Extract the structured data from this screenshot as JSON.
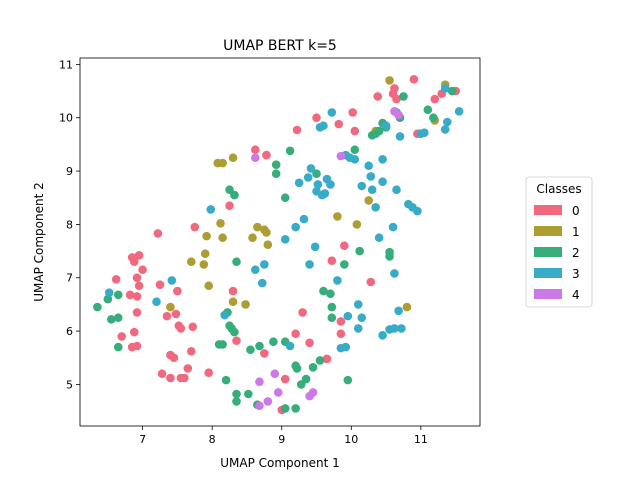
{
  "chart_data": {
    "type": "scatter",
    "title": "UMAP BERT k=5",
    "xlabel": "UMAP Component 1",
    "ylabel": "UMAP Component 2",
    "xlim": [
      6.1,
      11.85
    ],
    "ylim": [
      4.22,
      11.12
    ],
    "xticks": [
      7,
      8,
      9,
      10,
      11
    ],
    "yticks": [
      5,
      6,
      7,
      8,
      9,
      10,
      11
    ],
    "grid": false,
    "legend": {
      "title": "Classes",
      "placement": "center-right"
    },
    "series": [
      {
        "name": "0",
        "color": "#f0697e",
        "points": [
          [
            6.62,
            6.97
          ],
          [
            6.85,
            7.38
          ],
          [
            6.95,
            7.42
          ],
          [
            6.88,
            7.3
          ],
          [
            6.92,
            7.0
          ],
          [
            6.95,
            6.85
          ],
          [
            7.0,
            7.15
          ],
          [
            6.82,
            6.68
          ],
          [
            6.92,
            6.65
          ],
          [
            6.92,
            6.35
          ],
          [
            6.7,
            5.9
          ],
          [
            6.88,
            5.98
          ],
          [
            6.85,
            5.7
          ],
          [
            6.92,
            5.72
          ],
          [
            7.22,
            7.83
          ],
          [
            7.25,
            6.87
          ],
          [
            7.35,
            6.28
          ],
          [
            7.4,
            5.55
          ],
          [
            7.45,
            5.5
          ],
          [
            7.5,
            6.75
          ],
          [
            7.48,
            6.32
          ],
          [
            7.52,
            6.1
          ],
          [
            7.55,
            6.05
          ],
          [
            7.28,
            5.2
          ],
          [
            7.4,
            5.12
          ],
          [
            7.55,
            5.12
          ],
          [
            7.6,
            5.12
          ],
          [
            7.65,
            5.3
          ],
          [
            7.7,
            5.62
          ],
          [
            7.72,
            6.08
          ],
          [
            7.95,
            5.22
          ],
          [
            7.75,
            7.95
          ],
          [
            8.25,
            8.35
          ],
          [
            8.3,
            6.75
          ],
          [
            8.35,
            5.82
          ],
          [
            8.62,
            9.4
          ],
          [
            8.78,
            9.3
          ],
          [
            8.75,
            5.58
          ],
          [
            9.0,
            4.52
          ],
          [
            9.05,
            5.1
          ],
          [
            9.2,
            5.95
          ],
          [
            9.22,
            9.77
          ],
          [
            9.3,
            6.35
          ],
          [
            9.4,
            5.78
          ],
          [
            9.5,
            10.0
          ],
          [
            9.65,
            5.48
          ],
          [
            9.72,
            7.32
          ],
          [
            9.85,
            6.18
          ],
          [
            9.85,
            5.95
          ],
          [
            9.82,
            9.88
          ],
          [
            9.9,
            7.6
          ],
          [
            10.02,
            10.1
          ],
          [
            10.05,
            9.75
          ],
          [
            10.28,
            6.92
          ],
          [
            10.38,
            10.4
          ],
          [
            10.6,
            10.45
          ],
          [
            10.62,
            10.55
          ],
          [
            10.65,
            10.35
          ],
          [
            10.9,
            10.72
          ],
          [
            10.95,
            9.7
          ],
          [
            11.2,
            10.35
          ],
          [
            11.3,
            10.45
          ],
          [
            11.5,
            10.5
          ]
        ]
      },
      {
        "name": "1",
        "color": "#ad9d33",
        "points": [
          [
            7.4,
            6.45
          ],
          [
            7.7,
            7.3
          ],
          [
            7.88,
            7.25
          ],
          [
            7.9,
            7.45
          ],
          [
            7.92,
            7.78
          ],
          [
            7.95,
            6.85
          ],
          [
            8.08,
            9.15
          ],
          [
            8.15,
            9.15
          ],
          [
            8.12,
            8.02
          ],
          [
            8.15,
            7.75
          ],
          [
            8.3,
            9.25
          ],
          [
            8.3,
            6.55
          ],
          [
            8.48,
            6.5
          ],
          [
            8.58,
            7.75
          ],
          [
            8.65,
            7.95
          ],
          [
            8.75,
            7.9
          ],
          [
            8.78,
            7.85
          ],
          [
            8.8,
            7.62
          ],
          [
            9.8,
            8.15
          ],
          [
            10.08,
            8.0
          ],
          [
            10.25,
            8.45
          ],
          [
            10.35,
            9.75
          ],
          [
            10.55,
            10.7
          ],
          [
            10.8,
            6.45
          ],
          [
            11.2,
            9.95
          ],
          [
            11.35,
            10.62
          ]
        ]
      },
      {
        "name": "2",
        "color": "#36ad7a",
        "points": [
          [
            6.35,
            6.45
          ],
          [
            6.5,
            6.6
          ],
          [
            6.55,
            6.22
          ],
          [
            6.65,
            6.25
          ],
          [
            6.65,
            5.7
          ],
          [
            6.65,
            6.68
          ],
          [
            8.1,
            5.75
          ],
          [
            8.15,
            5.75
          ],
          [
            8.2,
            5.08
          ],
          [
            8.22,
            6.35
          ],
          [
            8.25,
            6.1
          ],
          [
            8.28,
            6.05
          ],
          [
            8.32,
            5.98
          ],
          [
            8.32,
            8.55
          ],
          [
            8.25,
            8.65
          ],
          [
            8.35,
            4.82
          ],
          [
            8.35,
            4.68
          ],
          [
            8.35,
            7.3
          ],
          [
            8.52,
            4.82
          ],
          [
            8.55,
            5.65
          ],
          [
            8.65,
            4.62
          ],
          [
            8.68,
            5.72
          ],
          [
            8.88,
            5.8
          ],
          [
            8.92,
            9.12
          ],
          [
            8.92,
            8.95
          ],
          [
            9.05,
            8.5
          ],
          [
            9.05,
            5.8
          ],
          [
            9.12,
            9.38
          ],
          [
            9.2,
            5.35
          ],
          [
            9.22,
            5.3
          ],
          [
            9.28,
            5.0
          ],
          [
            9.35,
            5.1
          ],
          [
            9.45,
            5.32
          ],
          [
            9.5,
            8.95
          ],
          [
            9.55,
            5.45
          ],
          [
            9.6,
            6.75
          ],
          [
            9.7,
            6.7
          ],
          [
            9.72,
            6.25
          ],
          [
            9.72,
            6.45
          ],
          [
            9.9,
            7.25
          ],
          [
            9.95,
            5.08
          ],
          [
            10.05,
            9.4
          ],
          [
            10.12,
            7.5
          ],
          [
            10.3,
            9.67
          ],
          [
            10.35,
            9.7
          ],
          [
            10.4,
            9.75
          ],
          [
            10.45,
            9.9
          ],
          [
            10.5,
            9.82
          ],
          [
            10.55,
            7.48
          ],
          [
            10.55,
            7.4
          ],
          [
            10.7,
            10.0
          ],
          [
            10.75,
            10.4
          ],
          [
            11.1,
            10.15
          ],
          [
            11.18,
            10.0
          ],
          [
            11.45,
            10.5
          ],
          [
            9.05,
            4.55
          ],
          [
            9.2,
            4.55
          ]
        ]
      },
      {
        "name": "3",
        "color": "#37abc8",
        "points": [
          [
            6.52,
            6.72
          ],
          [
            7.2,
            6.55
          ],
          [
            7.42,
            6.95
          ],
          [
            7.98,
            8.28
          ],
          [
            8.18,
            6.3
          ],
          [
            8.62,
            7.15
          ],
          [
            8.75,
            7.25
          ],
          [
            8.72,
            6.9
          ],
          [
            9.05,
            7.72
          ],
          [
            9.12,
            5.72
          ],
          [
            9.2,
            7.95
          ],
          [
            9.25,
            8.78
          ],
          [
            9.32,
            8.1
          ],
          [
            9.38,
            8.88
          ],
          [
            9.42,
            9.05
          ],
          [
            9.48,
            7.58
          ],
          [
            9.5,
            8.62
          ],
          [
            9.52,
            8.75
          ],
          [
            9.58,
            8.55
          ],
          [
            9.62,
            8.58
          ],
          [
            9.65,
            8.85
          ],
          [
            9.7,
            8.75
          ],
          [
            9.72,
            10.1
          ],
          [
            9.55,
            9.82
          ],
          [
            9.6,
            9.85
          ],
          [
            9.4,
            7.25
          ],
          [
            9.8,
            6.95
          ],
          [
            9.92,
            5.7
          ],
          [
            9.85,
            5.68
          ],
          [
            9.92,
            9.3
          ],
          [
            9.98,
            9.25
          ],
          [
            10.05,
            9.22
          ],
          [
            10.1,
            6.05
          ],
          [
            10.15,
            8.72
          ],
          [
            10.25,
            9.1
          ],
          [
            10.28,
            8.9
          ],
          [
            10.3,
            8.65
          ],
          [
            10.35,
            8.32
          ],
          [
            10.4,
            7.75
          ],
          [
            10.45,
            8.8
          ],
          [
            10.45,
            9.22
          ],
          [
            10.5,
            9.85
          ],
          [
            10.6,
            7.95
          ],
          [
            10.62,
            7.08
          ],
          [
            10.62,
            6.05
          ],
          [
            10.65,
            8.65
          ],
          [
            10.68,
            6.38
          ],
          [
            10.72,
            6.05
          ],
          [
            10.82,
            8.38
          ],
          [
            10.88,
            8.32
          ],
          [
            10.95,
            8.25
          ],
          [
            11.0,
            9.7
          ],
          [
            11.05,
            9.72
          ],
          [
            11.35,
            9.78
          ],
          [
            11.38,
            9.92
          ],
          [
            11.35,
            10.55
          ],
          [
            11.55,
            10.12
          ],
          [
            9.95,
            6.28
          ],
          [
            10.15,
            6.25
          ],
          [
            10.1,
            6.5
          ],
          [
            10.45,
            5.92
          ],
          [
            10.55,
            6.03
          ],
          [
            10.65,
            10.1
          ],
          [
            10.7,
            9.65
          ]
        ]
      },
      {
        "name": "4",
        "color": "#cc78e8",
        "points": [
          [
            8.62,
            9.25
          ],
          [
            8.68,
            5.05
          ],
          [
            8.68,
            4.6
          ],
          [
            8.8,
            4.68
          ],
          [
            8.9,
            5.2
          ],
          [
            8.95,
            4.85
          ],
          [
            9.4,
            4.78
          ],
          [
            9.45,
            4.85
          ],
          [
            9.85,
            9.28
          ],
          [
            10.62,
            10.12
          ],
          [
            10.68,
            10.05
          ]
        ]
      }
    ]
  }
}
